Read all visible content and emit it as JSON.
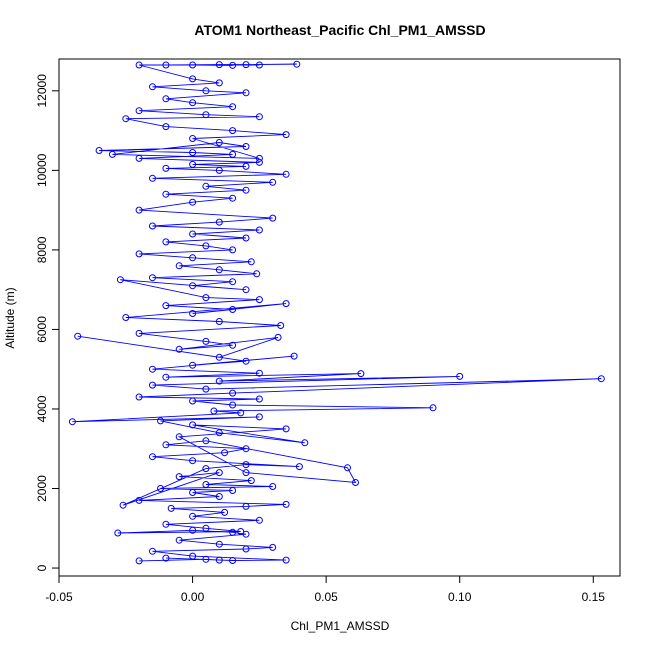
{
  "chart_data": {
    "type": "scatter",
    "mode": "lines+markers",
    "title": "ATOM1 Northeast_Pacific Chl_PM1_AMSSD",
    "xlabel": "Chl_PM1_AMSSD",
    "ylabel": "Altitude (m)",
    "xlim": [
      -0.05,
      0.16
    ],
    "ylim": [
      -200,
      12800
    ],
    "xticks": [
      -0.05,
      0.0,
      0.05,
      0.1,
      0.15
    ],
    "xtick_labels": [
      "-0.05",
      "0.00",
      "0.05",
      "0.10",
      "0.15"
    ],
    "yticks": [
      0,
      2000,
      4000,
      6000,
      8000,
      10000,
      12000
    ],
    "ytick_labels": [
      "0",
      "2000",
      "4000",
      "6000",
      "8000",
      "10000",
      "12000"
    ],
    "grid": false,
    "legend": "none",
    "color": "#0000ff",
    "series": [
      {
        "x": [
          -0.02,
          0.005,
          0.01,
          -0.01,
          0.015,
          0.035,
          0.0,
          -0.015,
          0.02,
          0.03,
          0.01,
          -0.005,
          0.02,
          0.015,
          0.0,
          -0.028,
          0.018,
          0.005,
          -0.01,
          0.025,
          0.0,
          0.012,
          -0.008,
          0.02,
          0.035,
          -0.02,
          0.01,
          0.0,
          0.015,
          -0.012,
          0.03,
          0.005,
          0.022,
          -0.005,
          0.01,
          -0.026,
          0.005,
          0.02,
          0.04,
          0.0,
          -0.015,
          0.012,
          0.02,
          -0.01,
          0.005,
          0.058,
          0.061,
          0.02,
          -0.005,
          0.035,
          0.0,
          0.042,
          0.01,
          -0.012,
          0.025,
          -0.045,
          0.018,
          0.008,
          0.09,
          0.015,
          0.0,
          0.025,
          -0.02,
          0.015,
          0.153,
          0.005,
          -0.015,
          0.1,
          0.01,
          0.063,
          -0.01,
          0.025,
          -0.015,
          0.038,
          0.0,
          0.02,
          -0.043,
          0.01,
          0.032,
          -0.005,
          0.015,
          0.005,
          -0.02,
          0.033,
          0.01,
          -0.025,
          0.035,
          0.0,
          0.015,
          -0.01,
          0.025,
          0.005,
          -0.027,
          0.02,
          0.0,
          0.015,
          -0.015,
          0.024,
          0.01,
          -0.005,
          0.022,
          0.0,
          -0.02,
          0.015,
          0.005,
          -0.01,
          0.02,
          0.0,
          0.025,
          -0.015,
          0.01,
          0.03,
          -0.02,
          0.0,
          0.015,
          -0.01,
          0.02,
          0.005,
          0.03,
          -0.015,
          0.035,
          0.01,
          -0.01,
          0.02,
          0.0,
          0.025,
          -0.02,
          0.015,
          0.0,
          -0.035,
          0.02,
          0.01,
          -0.03,
          0.025,
          0.0,
          0.035,
          0.015,
          -0.01,
          -0.025,
          0.025,
          0.005,
          -0.02,
          0.015,
          0.0,
          -0.01,
          0.02,
          0.005,
          -0.015,
          0.01,
          0.0,
          -0.02,
          0.025,
          0.01,
          -0.01,
          0.039,
          0.02,
          0.0,
          0.015
        ],
        "y": [
          180,
          220,
          200,
          250,
          190,
          200,
          300,
          420,
          480,
          520,
          600,
          700,
          850,
          900,
          950,
          880,
          920,
          1000,
          1100,
          1200,
          1300,
          1400,
          1500,
          1550,
          1600,
          1700,
          1800,
          1900,
          1950,
          2000,
          2050,
          2100,
          2200,
          2300,
          2400,
          1580,
          2500,
          2600,
          2550,
          2700,
          2800,
          2900,
          3000,
          3100,
          3200,
          2520,
          2150,
          2400,
          3300,
          3500,
          3600,
          3150,
          3400,
          3700,
          3800,
          3680,
          3900,
          3950,
          4030,
          4100,
          4200,
          4250,
          4300,
          4400,
          4760,
          4500,
          4600,
          4820,
          4700,
          4890,
          4800,
          4900,
          5000,
          5330,
          5100,
          5200,
          5830,
          5300,
          5800,
          5500,
          5600,
          5700,
          5900,
          6100,
          6200,
          6300,
          6650,
          6400,
          6500,
          6600,
          6750,
          6800,
          7250,
          7000,
          7100,
          7200,
          7300,
          7400,
          7500,
          7600,
          7700,
          7800,
          7900,
          8000,
          8100,
          8200,
          8300,
          8400,
          8500,
          8600,
          8700,
          8800,
          9000,
          9200,
          9300,
          9400,
          9500,
          9600,
          9700,
          9800,
          9900,
          10000,
          10050,
          10100,
          10150,
          10200,
          10300,
          10400,
          10450,
          10500,
          10600,
          10700,
          10400,
          10300,
          10800,
          10900,
          11000,
          11100,
          11300,
          11350,
          11400,
          11500,
          11600,
          11700,
          11800,
          11950,
          12000,
          12100,
          12200,
          12300,
          12650,
          12650,
          12660,
          12650,
          12670,
          12660,
          12650,
          12640
        ]
      }
    ]
  }
}
